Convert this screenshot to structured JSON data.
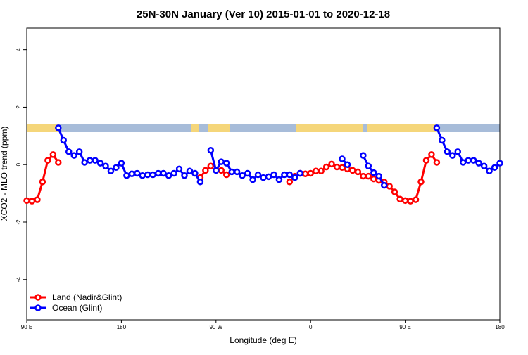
{
  "chart_data": {
    "type": "line",
    "title": "25N-30N January (Ver 10)   2015-01-01 to 2020-12-18",
    "x_label": "Longitude (deg E)",
    "y_label": "XCO2 - MLO trend (ppm)",
    "x": [
      90,
      95,
      100,
      105,
      110,
      115,
      120,
      125,
      130,
      135,
      140,
      145,
      150,
      155,
      160,
      165,
      170,
      175,
      180,
      185,
      190,
      195,
      200,
      205,
      210,
      215,
      220,
      225,
      230,
      235,
      240,
      245,
      250,
      255,
      260,
      265,
      270,
      275,
      280,
      285,
      290,
      295,
      300,
      305,
      310,
      315,
      320,
      325,
      330,
      335,
      340,
      345,
      350,
      355,
      360,
      365,
      370,
      375,
      380,
      385,
      390,
      395,
      400,
      405,
      410,
      415,
      420,
      425,
      430,
      435,
      440,
      445,
      450,
      455,
      460,
      465,
      470,
      475,
      480,
      485,
      490,
      495,
      500,
      505,
      510,
      515,
      520,
      525,
      530,
      535,
      540
    ],
    "xlim": [
      90,
      540
    ],
    "xticks": [
      {
        "value": 90,
        "label": "90 E"
      },
      180,
      {
        "value": 270,
        "label": "90 W"
      },
      {
        "value": 360,
        "label": "0"
      },
      {
        "value": 450,
        "label": "90 E"
      },
      {
        "value": 540,
        "label": "180"
      }
    ],
    "ylim": [
      -5.4,
      4.75
    ],
    "yticks": [
      -4,
      -2,
      0,
      2,
      4
    ],
    "legend": "bottom-left",
    "series": [
      {
        "name": "Land (Nadir&Glint)",
        "color": "#ff0000",
        "values": [
          -1.25,
          -1.27,
          -1.22,
          -0.6,
          0.15,
          0.35,
          0.08,
          null,
          null,
          null,
          null,
          null,
          null,
          null,
          null,
          null,
          null,
          null,
          null,
          null,
          null,
          null,
          null,
          null,
          null,
          null,
          null,
          null,
          null,
          null,
          null,
          null,
          null,
          -0.45,
          -0.2,
          -0.05,
          null,
          -0.2,
          -0.35,
          null,
          null,
          null,
          null,
          null,
          null,
          null,
          null,
          null,
          null,
          null,
          -0.6,
          -0.4,
          -0.3,
          -0.32,
          -0.3,
          -0.22,
          -0.22,
          -0.08,
          0.02,
          -0.08,
          -0.1,
          -0.15,
          -0.2,
          -0.25,
          -0.4,
          -0.4,
          -0.5,
          -0.55,
          -0.6,
          -0.75,
          -0.95,
          -1.2,
          -1.25,
          -1.27,
          -1.22,
          -0.6,
          0.15,
          0.35,
          0.08,
          null,
          null,
          null,
          null,
          null,
          null,
          null,
          null,
          null,
          null,
          null,
          null
        ]
      },
      {
        "name": "Ocean (Glint)",
        "color": "#0000ff",
        "values": [
          null,
          null,
          null,
          null,
          null,
          null,
          1.28,
          0.85,
          0.45,
          0.32,
          0.45,
          0.08,
          0.15,
          0.15,
          0.05,
          -0.05,
          -0.22,
          -0.1,
          0.05,
          -0.38,
          -0.32,
          -0.3,
          -0.38,
          -0.35,
          -0.35,
          -0.3,
          -0.3,
          -0.38,
          -0.3,
          -0.15,
          -0.38,
          -0.22,
          -0.3,
          -0.6,
          null,
          0.5,
          -0.2,
          0.1,
          0.05,
          -0.25,
          -0.25,
          -0.38,
          -0.3,
          -0.52,
          -0.35,
          -0.45,
          -0.42,
          -0.35,
          -0.52,
          -0.35,
          -0.35,
          -0.45,
          -0.3,
          null,
          null,
          null,
          null,
          null,
          null,
          null,
          0.2,
          0.0,
          null,
          null,
          0.32,
          -0.05,
          -0.28,
          -0.4,
          -0.72,
          null,
          null,
          null,
          null,
          null,
          null,
          null,
          null,
          null,
          1.28,
          0.85,
          0.45,
          0.32,
          0.45,
          0.08,
          0.15,
          0.15,
          0.05,
          -0.05,
          -0.22,
          -0.1,
          0.05
        ]
      }
    ]
  }
}
